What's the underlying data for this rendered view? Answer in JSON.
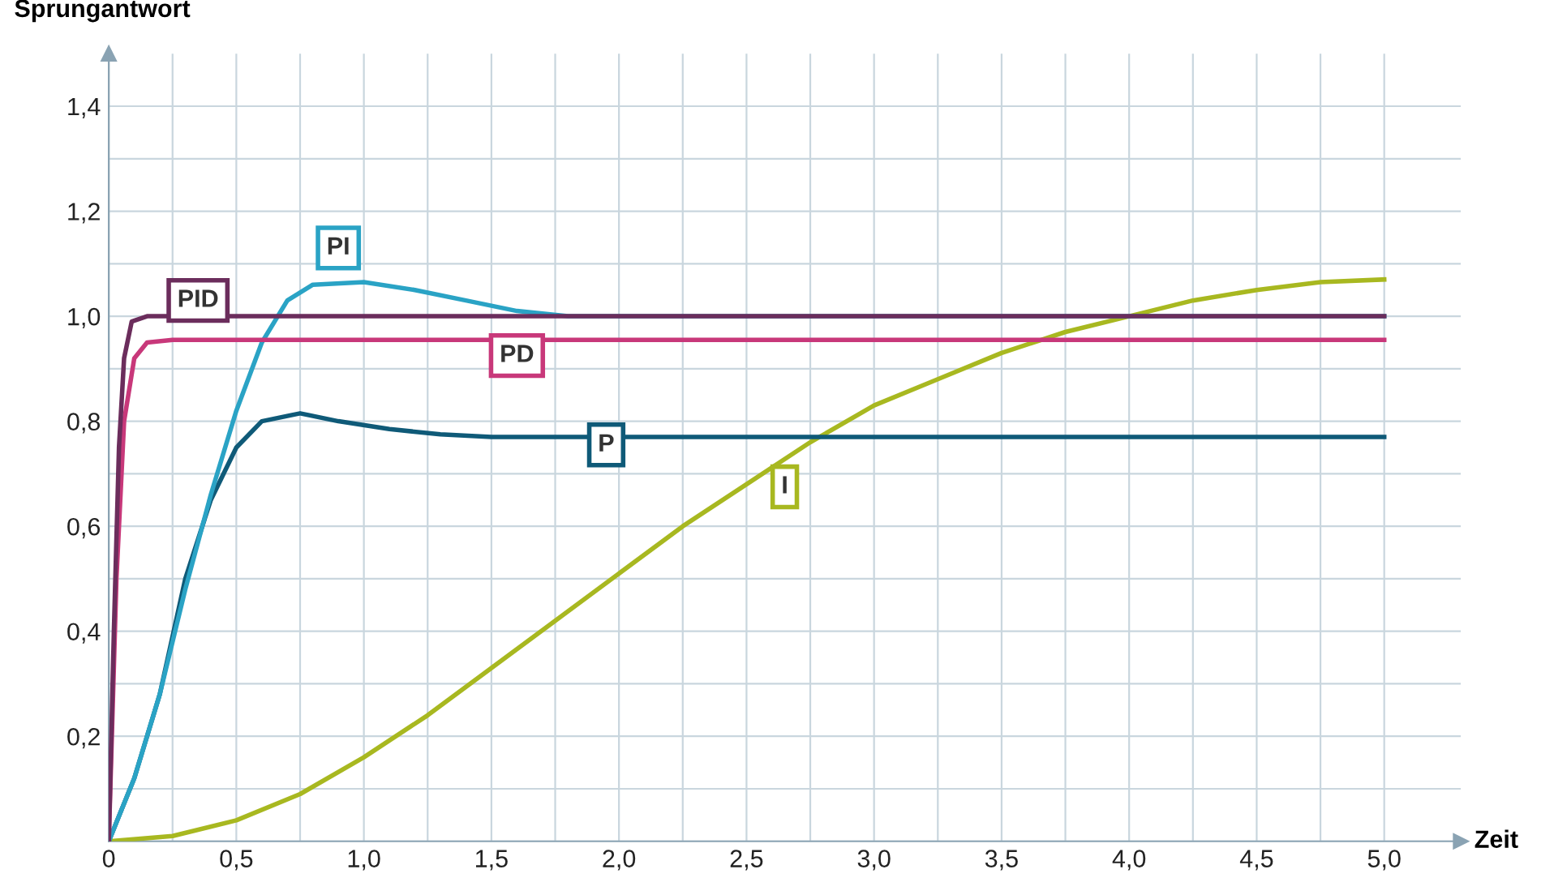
{
  "chart_data": {
    "type": "line",
    "xlabel": "Zeit",
    "ylabel": "Sprungantwort",
    "xlim": [
      0,
      5.3
    ],
    "ylim": [
      0,
      1.5
    ],
    "xticks": [
      {
        "value": 0,
        "label": "0"
      },
      {
        "value": 0.5,
        "label": "0,5"
      },
      {
        "value": 1,
        "label": "1,0"
      },
      {
        "value": 1.5,
        "label": "1,5"
      },
      {
        "value": 2,
        "label": "2,0"
      },
      {
        "value": 2.5,
        "label": "2,5"
      },
      {
        "value": 3,
        "label": "3,0"
      },
      {
        "value": 3.5,
        "label": "3,5"
      },
      {
        "value": 4,
        "label": "4,0"
      },
      {
        "value": 4.5,
        "label": "4,5"
      },
      {
        "value": 5,
        "label": "5,0"
      }
    ],
    "yticks": [
      {
        "value": 0,
        "label": null
      },
      {
        "value": 0.2,
        "label": "0,2"
      },
      {
        "value": 0.4,
        "label": "0,4"
      },
      {
        "value": 0.6,
        "label": "0,6"
      },
      {
        "value": 0.8,
        "label": "0,8"
      },
      {
        "value": 1.0,
        "label": "1,0"
      },
      {
        "value": 1.2,
        "label": "1,2"
      },
      {
        "value": 1.4,
        "label": "1,4"
      }
    ],
    "grid": true,
    "legend": false,
    "marker": "none",
    "line_style": "solid",
    "series": [
      {
        "name": "PID",
        "color": "#6b2d5c",
        "x": [
          0,
          0.02,
          0.04,
          0.06,
          0.09,
          0.15,
          5
        ],
        "values": [
          0,
          0.4,
          0.75,
          0.92,
          0.99,
          1.0,
          1.0
        ]
      },
      {
        "name": "PD",
        "color": "#c8387a",
        "x": [
          0,
          0.03,
          0.06,
          0.1,
          0.15,
          0.25,
          5
        ],
        "values": [
          0,
          0.5,
          0.8,
          0.92,
          0.95,
          0.955,
          0.955
        ]
      },
      {
        "name": "PI",
        "color": "#2aa3c5",
        "x": [
          0,
          0.1,
          0.2,
          0.3,
          0.4,
          0.5,
          0.6,
          0.7,
          0.8,
          1.0,
          1.2,
          1.4,
          1.6,
          1.8,
          2.0,
          5
        ],
        "values": [
          0,
          0.12,
          0.28,
          0.48,
          0.66,
          0.82,
          0.95,
          1.03,
          1.06,
          1.065,
          1.05,
          1.03,
          1.01,
          1.0,
          1.0,
          1.0
        ]
      },
      {
        "name": "P",
        "color": "#0f5a78",
        "x": [
          0,
          0.1,
          0.2,
          0.3,
          0.4,
          0.5,
          0.6,
          0.75,
          0.9,
          1.1,
          1.3,
          1.5,
          5
        ],
        "values": [
          0,
          0.12,
          0.28,
          0.5,
          0.65,
          0.75,
          0.8,
          0.815,
          0.8,
          0.785,
          0.775,
          0.77,
          0.77
        ]
      },
      {
        "name": "I",
        "color": "#a8b820",
        "x": [
          0,
          0.25,
          0.5,
          0.75,
          1.0,
          1.25,
          1.5,
          1.75,
          2.0,
          2.25,
          2.5,
          2.75,
          3.0,
          3.25,
          3.5,
          3.75,
          4.0,
          4.25,
          4.5,
          4.75,
          5.0
        ],
        "values": [
          0,
          0.01,
          0.04,
          0.09,
          0.16,
          0.24,
          0.33,
          0.42,
          0.51,
          0.6,
          0.68,
          0.76,
          0.83,
          0.88,
          0.93,
          0.97,
          1.0,
          1.03,
          1.05,
          1.065,
          1.07
        ]
      }
    ]
  }
}
